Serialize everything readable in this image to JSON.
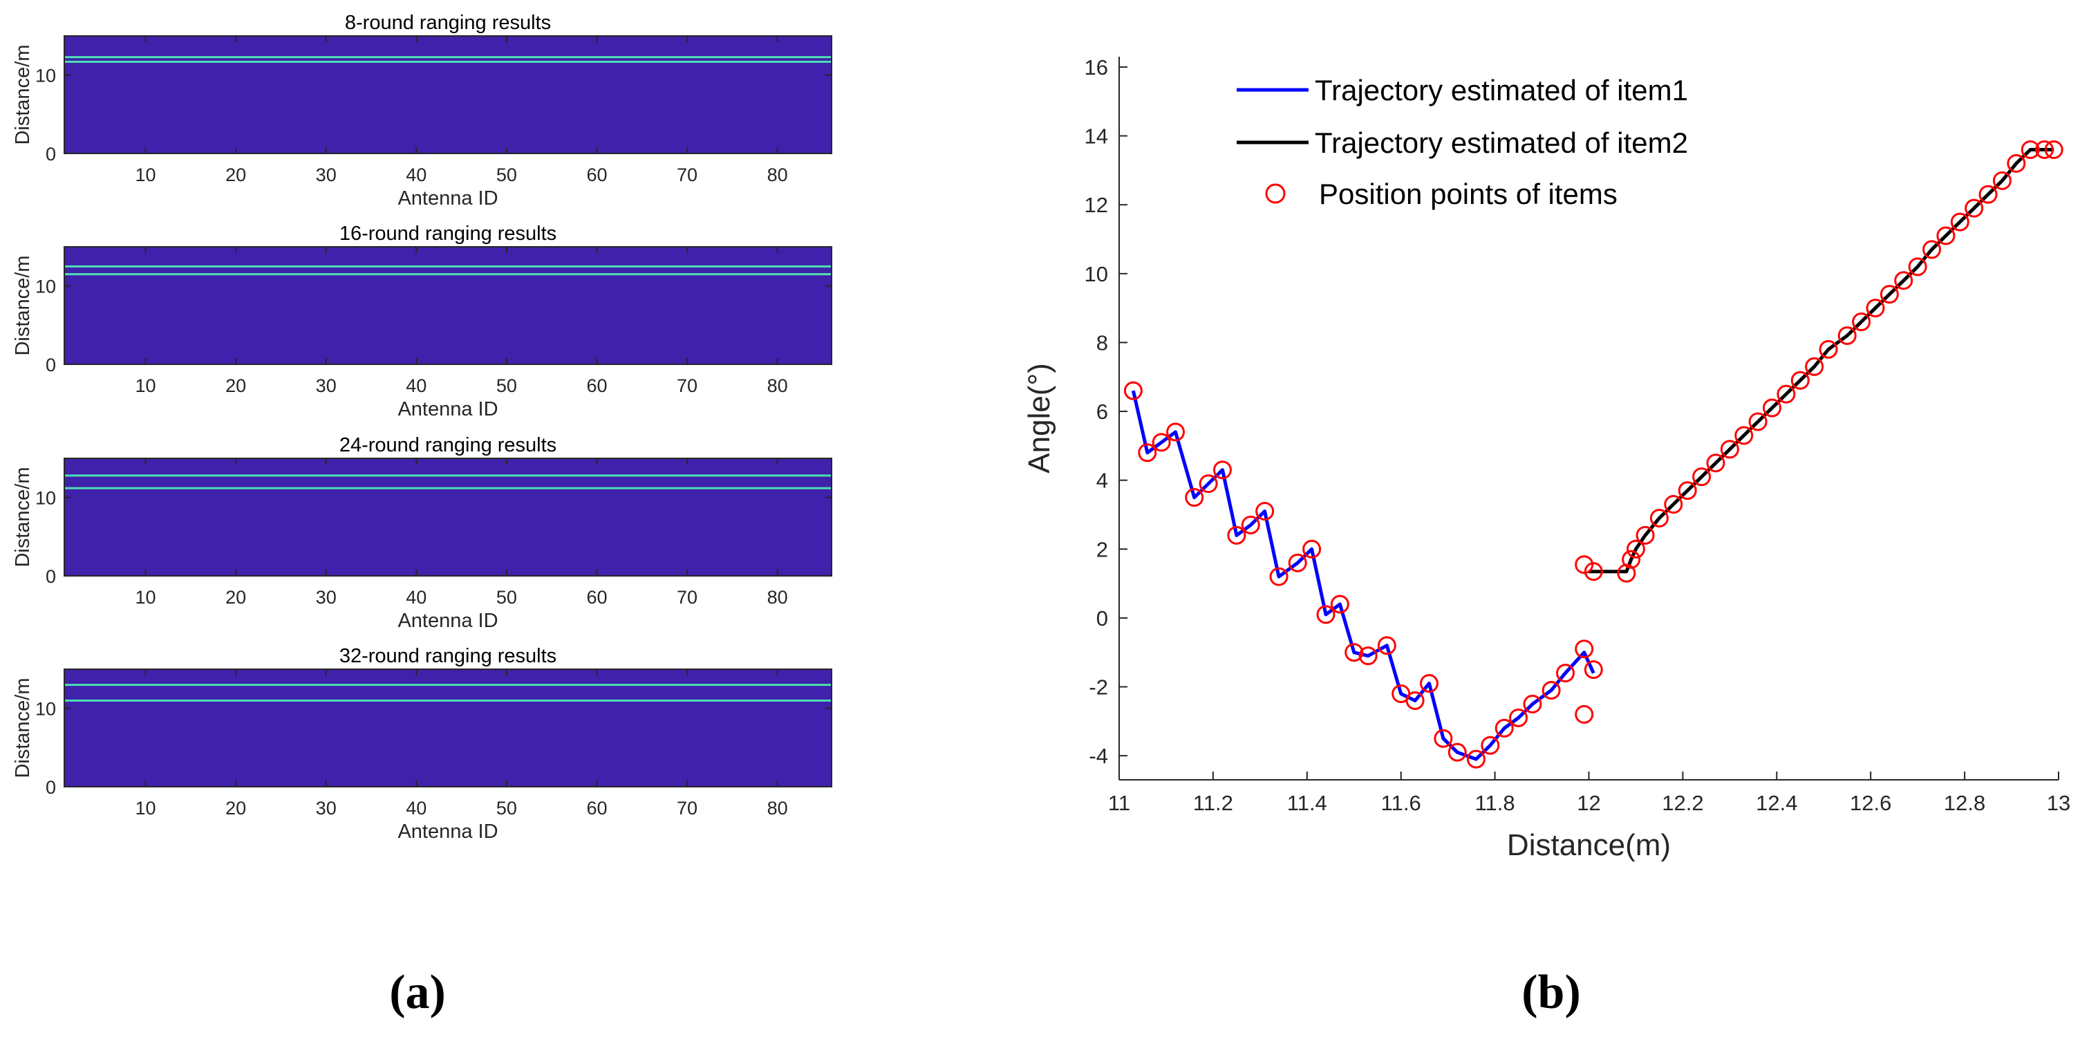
{
  "panel_labels": {
    "a": "(a)",
    "b": "(b)"
  },
  "colors": {
    "heatmap_bg": "#3f21ab",
    "heatmap_line": "#4ee1b1",
    "item1": "#0000ff",
    "item2": "#000000",
    "points": "#ff0000"
  },
  "chart_data": [
    {
      "type": "heatmap",
      "title": "8-round ranging results",
      "xlabel": "Antenna ID",
      "ylabel": "Distance/m",
      "xlim": [
        1,
        86
      ],
      "ylim": [
        0,
        15
      ],
      "xticks": [
        10,
        20,
        30,
        40,
        50,
        60,
        70,
        80
      ],
      "yticks": [
        0,
        10
      ],
      "peak_distances": [
        11.7,
        12.3
      ]
    },
    {
      "type": "heatmap",
      "title": "16-round ranging results",
      "xlabel": "Antenna ID",
      "ylabel": "Distance/m",
      "xlim": [
        1,
        86
      ],
      "ylim": [
        0,
        15
      ],
      "xticks": [
        10,
        20,
        30,
        40,
        50,
        60,
        70,
        80
      ],
      "yticks": [
        0,
        10
      ],
      "peak_distances": [
        11.5,
        12.5
      ]
    },
    {
      "type": "heatmap",
      "title": "24-round ranging results",
      "xlabel": "Antenna ID",
      "ylabel": "Distance/m",
      "xlim": [
        1,
        86
      ],
      "ylim": [
        0,
        15
      ],
      "xticks": [
        10,
        20,
        30,
        40,
        50,
        60,
        70,
        80
      ],
      "yticks": [
        0,
        10
      ],
      "peak_distances": [
        11.2,
        12.8
      ]
    },
    {
      "type": "heatmap",
      "title": "32-round ranging results",
      "xlabel": "Antenna ID",
      "ylabel": "Distance/m",
      "xlim": [
        1,
        86
      ],
      "ylim": [
        0,
        15
      ],
      "xticks": [
        10,
        20,
        30,
        40,
        50,
        60,
        70,
        80
      ],
      "yticks": [
        0,
        10
      ],
      "peak_distances": [
        11.0,
        13.0
      ]
    },
    {
      "type": "line",
      "xlabel": "Distance(m)",
      "ylabel": "Angle(°)",
      "xlim": [
        11,
        13
      ],
      "ylim": [
        -4.7,
        16.3
      ],
      "xticks": [
        11,
        11.2,
        11.4,
        11.6,
        11.8,
        12,
        12.2,
        12.4,
        12.6,
        12.8,
        13
      ],
      "xtick_labels": [
        "11",
        "11.2",
        "11.4",
        "11.6",
        "11.8",
        "12",
        "12.2",
        "12.4",
        "12.6",
        "12.8",
        "13"
      ],
      "yticks": [
        -4,
        -2,
        0,
        2,
        4,
        6,
        8,
        10,
        12,
        14,
        16
      ],
      "ytick_labels": [
        "-4",
        "-2",
        "0",
        "2",
        "4",
        "6",
        "8",
        "10",
        "12",
        "14",
        "16"
      ],
      "legend_position": "top-left",
      "series": [
        {
          "name": "Trajectory estimated of item1",
          "mark": "line",
          "x": [
            11.03,
            11.06,
            11.09,
            11.12,
            11.16,
            11.19,
            11.22,
            11.25,
            11.28,
            11.31,
            11.34,
            11.38,
            11.41,
            11.44,
            11.47,
            11.5,
            11.53,
            11.57,
            11.6,
            11.63,
            11.66,
            11.69,
            11.72,
            11.76,
            11.79,
            11.82,
            11.85,
            11.88,
            11.92,
            11.95,
            11.99,
            12.01
          ],
          "y": [
            6.6,
            4.8,
            5.1,
            5.4,
            3.5,
            3.9,
            4.3,
            2.4,
            2.7,
            3.1,
            1.2,
            1.6,
            2.0,
            0.1,
            0.4,
            -1.0,
            -1.1,
            -0.8,
            -2.2,
            -2.4,
            -1.9,
            -3.5,
            -3.9,
            -4.1,
            -3.7,
            -3.2,
            -2.9,
            -2.5,
            -2.1,
            -1.6,
            -1.0,
            -1.6
          ]
        },
        {
          "name": "Trajectory estimated of item2",
          "mark": "line",
          "x": [
            12.0,
            12.08,
            12.09,
            12.1,
            12.12,
            12.15,
            12.18,
            12.21,
            12.24,
            12.27,
            12.3,
            12.33,
            12.36,
            12.39,
            12.42,
            12.45,
            12.48,
            12.51,
            12.55,
            12.58,
            12.61,
            12.64,
            12.67,
            12.7,
            12.73,
            12.76,
            12.79,
            12.82,
            12.85,
            12.88,
            12.91,
            12.94,
            12.97,
            12.99
          ],
          "y": [
            1.35,
            1.35,
            1.7,
            2.0,
            2.4,
            2.9,
            3.3,
            3.7,
            4.1,
            4.5,
            4.9,
            5.3,
            5.7,
            6.1,
            6.5,
            6.9,
            7.3,
            7.8,
            8.2,
            8.6,
            9.0,
            9.4,
            9.8,
            10.2,
            10.7,
            11.1,
            11.5,
            11.9,
            12.3,
            12.7,
            13.2,
            13.6,
            13.6,
            13.6
          ]
        },
        {
          "name": "Position points of items",
          "mark": "circle",
          "x": [
            11.03,
            11.06,
            11.09,
            11.12,
            11.16,
            11.19,
            11.22,
            11.25,
            11.28,
            11.31,
            11.34,
            11.38,
            11.41,
            11.44,
            11.47,
            11.5,
            11.53,
            11.57,
            11.6,
            11.63,
            11.66,
            11.69,
            11.72,
            11.76,
            11.79,
            11.82,
            11.85,
            11.88,
            11.92,
            11.95,
            11.99,
            12.01,
            11.99,
            11.99,
            12.01,
            12.08,
            12.09,
            12.1,
            12.12,
            12.15,
            12.18,
            12.21,
            12.24,
            12.27,
            12.3,
            12.33,
            12.36,
            12.39,
            12.42,
            12.45,
            12.48,
            12.51,
            12.55,
            12.58,
            12.61,
            12.64,
            12.67,
            12.7,
            12.73,
            12.76,
            12.79,
            12.82,
            12.85,
            12.88,
            12.91,
            12.94,
            12.97,
            12.99
          ],
          "y": [
            6.6,
            4.8,
            5.1,
            5.4,
            3.5,
            3.9,
            4.3,
            2.4,
            2.7,
            3.1,
            1.2,
            1.6,
            2.0,
            0.1,
            0.4,
            -1.0,
            -1.1,
            -0.8,
            -2.2,
            -2.4,
            -1.9,
            -3.5,
            -3.9,
            -4.1,
            -3.7,
            -3.2,
            -2.9,
            -2.5,
            -2.1,
            -1.6,
            -0.9,
            -1.5,
            -2.8,
            1.55,
            1.35,
            1.3,
            1.7,
            2.0,
            2.4,
            2.9,
            3.3,
            3.7,
            4.1,
            4.5,
            4.9,
            5.3,
            5.7,
            6.1,
            6.5,
            6.9,
            7.3,
            7.8,
            8.2,
            8.6,
            9.0,
            9.4,
            9.8,
            10.2,
            10.7,
            11.1,
            11.5,
            11.9,
            12.3,
            12.7,
            13.2,
            13.6,
            13.6,
            13.6
          ]
        }
      ]
    }
  ]
}
